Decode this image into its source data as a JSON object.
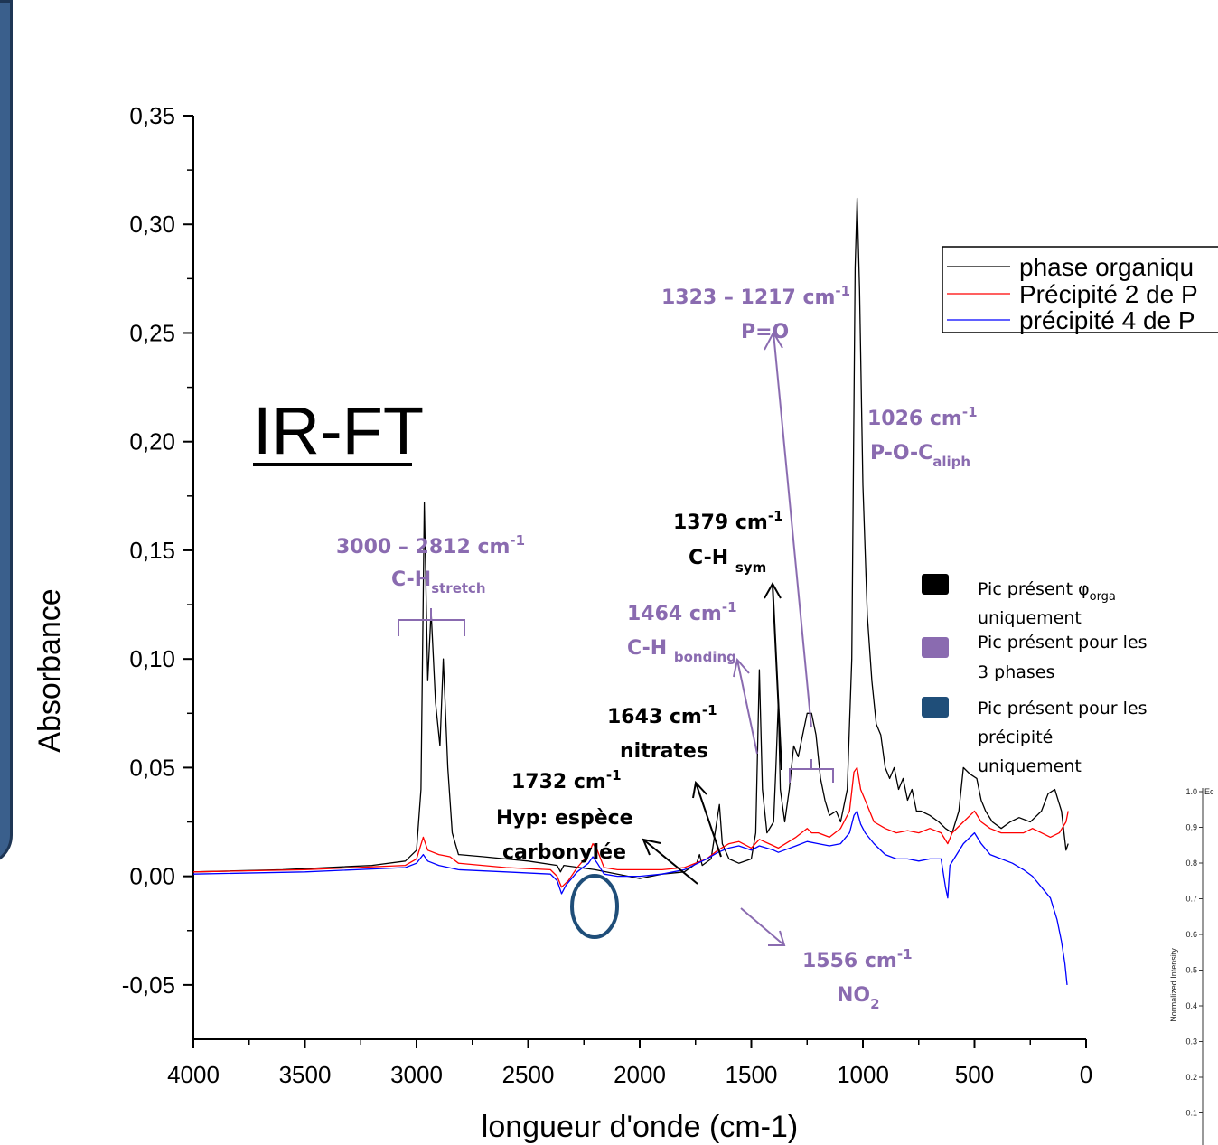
{
  "colors": {
    "black_series": "#000000",
    "red_series": "#ff0000",
    "blue_series": "#0000ff",
    "purple_annotation": "#8a6bb0",
    "dark_blue_key": "#1f4e79"
  },
  "title_overlay": "IR-FT",
  "chart_data": {
    "type": "line",
    "xlabel": "longueur d'onde (cm-1)",
    "ylabel": "Absorbance",
    "xlim": [
      4000,
      0
    ],
    "ylim": [
      -0.075,
      0.35
    ],
    "x_reversed": true,
    "x_ticks": [
      "4000",
      "3500",
      "3000",
      "2500",
      "2000",
      "1500",
      "1000",
      "500",
      "0"
    ],
    "y_ticks": [
      "0,35",
      "0,30",
      "0,25",
      "0,20",
      "0,15",
      "0,10",
      "0,05",
      "0,00",
      "-0,05"
    ],
    "x_tick_values": [
      4000,
      3500,
      3000,
      2500,
      2000,
      1500,
      1000,
      500,
      0
    ],
    "y_tick_values": [
      0.35,
      0.3,
      0.25,
      0.2,
      0.15,
      0.1,
      0.05,
      0.0,
      -0.05
    ],
    "legend_position": "top-right",
    "series": [
      {
        "name": "phase organique",
        "color": "#000000",
        "points": [
          [
            4000,
            0.002
          ],
          [
            3600,
            0.003
          ],
          [
            3200,
            0.005
          ],
          [
            3050,
            0.007
          ],
          [
            3000,
            0.012
          ],
          [
            2980,
            0.04
          ],
          [
            2965,
            0.172
          ],
          [
            2950,
            0.09
          ],
          [
            2935,
            0.122
          ],
          [
            2915,
            0.08
          ],
          [
            2895,
            0.06
          ],
          [
            2880,
            0.1
          ],
          [
            2860,
            0.05
          ],
          [
            2840,
            0.02
          ],
          [
            2812,
            0.01
          ],
          [
            2700,
            0.009
          ],
          [
            2500,
            0.007
          ],
          [
            2370,
            0.005
          ],
          [
            2355,
            0.002
          ],
          [
            2340,
            0.005
          ],
          [
            2200,
            0.003
          ],
          [
            2000,
            -0.001
          ],
          [
            1900,
            0.001
          ],
          [
            1800,
            0.002
          ],
          [
            1745,
            0.006
          ],
          [
            1732,
            0.01
          ],
          [
            1720,
            0.005
          ],
          [
            1680,
            0.008
          ],
          [
            1655,
            0.025
          ],
          [
            1643,
            0.033
          ],
          [
            1630,
            0.015
          ],
          [
            1600,
            0.008
          ],
          [
            1556,
            0.006
          ],
          [
            1500,
            0.008
          ],
          [
            1480,
            0.02
          ],
          [
            1464,
            0.095
          ],
          [
            1450,
            0.04
          ],
          [
            1430,
            0.02
          ],
          [
            1400,
            0.025
          ],
          [
            1390,
            0.05
          ],
          [
            1379,
            0.08
          ],
          [
            1370,
            0.04
          ],
          [
            1350,
            0.025
          ],
          [
            1330,
            0.04
          ],
          [
            1310,
            0.06
          ],
          [
            1290,
            0.055
          ],
          [
            1270,
            0.065
          ],
          [
            1250,
            0.075
          ],
          [
            1230,
            0.075
          ],
          [
            1210,
            0.065
          ],
          [
            1190,
            0.045
          ],
          [
            1170,
            0.035
          ],
          [
            1150,
            0.028
          ],
          [
            1120,
            0.03
          ],
          [
            1100,
            0.025
          ],
          [
            1070,
            0.04
          ],
          [
            1050,
            0.1
          ],
          [
            1035,
            0.28
          ],
          [
            1026,
            0.312
          ],
          [
            1015,
            0.27
          ],
          [
            1000,
            0.18
          ],
          [
            980,
            0.12
          ],
          [
            960,
            0.09
          ],
          [
            940,
            0.07
          ],
          [
            920,
            0.065
          ],
          [
            900,
            0.05
          ],
          [
            880,
            0.045
          ],
          [
            860,
            0.05
          ],
          [
            840,
            0.04
          ],
          [
            820,
            0.045
          ],
          [
            800,
            0.035
          ],
          [
            780,
            0.04
          ],
          [
            760,
            0.03
          ],
          [
            740,
            0.03
          ],
          [
            700,
            0.028
          ],
          [
            660,
            0.025
          ],
          [
            630,
            0.022
          ],
          [
            600,
            0.02
          ],
          [
            570,
            0.03
          ],
          [
            550,
            0.05
          ],
          [
            520,
            0.047
          ],
          [
            490,
            0.045
          ],
          [
            470,
            0.035
          ],
          [
            450,
            0.03
          ],
          [
            420,
            0.025
          ],
          [
            380,
            0.022
          ],
          [
            340,
            0.025
          ],
          [
            300,
            0.027
          ],
          [
            250,
            0.025
          ],
          [
            200,
            0.03
          ],
          [
            170,
            0.038
          ],
          [
            140,
            0.04
          ],
          [
            110,
            0.03
          ],
          [
            90,
            0.012
          ],
          [
            80,
            0.015
          ]
        ]
      },
      {
        "name": "Précipité 2 de P",
        "color": "#ff0000",
        "points": [
          [
            4000,
            0.002
          ],
          [
            3500,
            0.003
          ],
          [
            3050,
            0.005
          ],
          [
            3000,
            0.008
          ],
          [
            2970,
            0.018
          ],
          [
            2950,
            0.012
          ],
          [
            2900,
            0.01
          ],
          [
            2850,
            0.009
          ],
          [
            2812,
            0.006
          ],
          [
            2600,
            0.004
          ],
          [
            2400,
            0.003
          ],
          [
            2370,
            0.0
          ],
          [
            2350,
            -0.005
          ],
          [
            2320,
            -0.002
          ],
          [
            2280,
            0.004
          ],
          [
            2230,
            0.01
          ],
          [
            2210,
            0.015
          ],
          [
            2190,
            0.012
          ],
          [
            2160,
            0.004
          ],
          [
            2100,
            0.003
          ],
          [
            2000,
            0.003
          ],
          [
            1900,
            0.003
          ],
          [
            1800,
            0.004
          ],
          [
            1700,
            0.008
          ],
          [
            1650,
            0.012
          ],
          [
            1600,
            0.015
          ],
          [
            1556,
            0.016
          ],
          [
            1500,
            0.013
          ],
          [
            1464,
            0.017
          ],
          [
            1400,
            0.014
          ],
          [
            1379,
            0.013
          ],
          [
            1300,
            0.018
          ],
          [
            1250,
            0.022
          ],
          [
            1230,
            0.02
          ],
          [
            1200,
            0.02
          ],
          [
            1150,
            0.018
          ],
          [
            1100,
            0.022
          ],
          [
            1060,
            0.03
          ],
          [
            1040,
            0.048
          ],
          [
            1026,
            0.05
          ],
          [
            1010,
            0.04
          ],
          [
            990,
            0.035
          ],
          [
            950,
            0.025
          ],
          [
            900,
            0.022
          ],
          [
            850,
            0.02
          ],
          [
            800,
            0.021
          ],
          [
            750,
            0.02
          ],
          [
            700,
            0.022
          ],
          [
            650,
            0.02
          ],
          [
            620,
            0.015
          ],
          [
            600,
            0.02
          ],
          [
            550,
            0.025
          ],
          [
            520,
            0.028
          ],
          [
            500,
            0.03
          ],
          [
            470,
            0.025
          ],
          [
            430,
            0.022
          ],
          [
            380,
            0.02
          ],
          [
            330,
            0.02
          ],
          [
            280,
            0.02
          ],
          [
            240,
            0.022
          ],
          [
            200,
            0.02
          ],
          [
            160,
            0.018
          ],
          [
            120,
            0.02
          ],
          [
            90,
            0.025
          ],
          [
            80,
            0.03
          ]
        ]
      },
      {
        "name": "précipité 4 de P",
        "color": "#0000ff",
        "points": [
          [
            4000,
            0.001
          ],
          [
            3500,
            0.002
          ],
          [
            3050,
            0.004
          ],
          [
            3000,
            0.006
          ],
          [
            2970,
            0.01
          ],
          [
            2950,
            0.007
          ],
          [
            2900,
            0.005
          ],
          [
            2812,
            0.003
          ],
          [
            2600,
            0.002
          ],
          [
            2400,
            0.001
          ],
          [
            2370,
            -0.002
          ],
          [
            2350,
            -0.008
          ],
          [
            2330,
            -0.004
          ],
          [
            2280,
            0.002
          ],
          [
            2230,
            0.006
          ],
          [
            2210,
            0.009
          ],
          [
            2190,
            0.006
          ],
          [
            2160,
            0.001
          ],
          [
            2100,
            0.0
          ],
          [
            2000,
            0.0
          ],
          [
            1900,
            0.001
          ],
          [
            1800,
            0.003
          ],
          [
            1700,
            0.008
          ],
          [
            1650,
            0.011
          ],
          [
            1600,
            0.013
          ],
          [
            1556,
            0.014
          ],
          [
            1500,
            0.012
          ],
          [
            1464,
            0.014
          ],
          [
            1400,
            0.012
          ],
          [
            1379,
            0.011
          ],
          [
            1300,
            0.014
          ],
          [
            1250,
            0.016
          ],
          [
            1200,
            0.015
          ],
          [
            1150,
            0.014
          ],
          [
            1100,
            0.015
          ],
          [
            1060,
            0.02
          ],
          [
            1040,
            0.028
          ],
          [
            1026,
            0.03
          ],
          [
            1010,
            0.024
          ],
          [
            990,
            0.02
          ],
          [
            950,
            0.015
          ],
          [
            900,
            0.01
          ],
          [
            850,
            0.008
          ],
          [
            800,
            0.008
          ],
          [
            750,
            0.007
          ],
          [
            700,
            0.008
          ],
          [
            650,
            0.008
          ],
          [
            630,
            -0.005
          ],
          [
            620,
            -0.01
          ],
          [
            610,
            0.005
          ],
          [
            550,
            0.015
          ],
          [
            520,
            0.018
          ],
          [
            500,
            0.02
          ],
          [
            470,
            0.015
          ],
          [
            430,
            0.01
          ],
          [
            380,
            0.008
          ],
          [
            330,
            0.006
          ],
          [
            280,
            0.003
          ],
          [
            240,
            0.0
          ],
          [
            200,
            -0.005
          ],
          [
            160,
            -0.01
          ],
          [
            130,
            -0.02
          ],
          [
            110,
            -0.03
          ],
          [
            95,
            -0.04
          ],
          [
            85,
            -0.05
          ]
        ]
      }
    ],
    "annotations": [
      {
        "line1": "3000 – 2812 cm",
        "sup": "-1",
        "line2": "C-H",
        "sub": "stretch",
        "color": "purple"
      },
      {
        "line1": "1323 – 1217 cm",
        "sup": "-1",
        "line2": "P=O",
        "sub": "",
        "color": "purple"
      },
      {
        "line1": "1026 cm",
        "sup": "-1",
        "line2": "P-O-C",
        "sub": "aliph",
        "color": "purple"
      },
      {
        "line1": "1379 cm",
        "sup": "-1",
        "line2": "C-H ",
        "sub": "sym",
        "color": "black"
      },
      {
        "line1": "1464 cm",
        "sup": "-1",
        "line2": "C-H ",
        "sub": "bonding",
        "color": "purple"
      },
      {
        "line1": "1643 cm",
        "sup": "-1",
        "line2": "nitrates",
        "sub": "",
        "color": "black"
      },
      {
        "line1": "1732 cm",
        "sup": "-1",
        "line2": "Hyp: espèce",
        "line3": "carbonylée",
        "sub": "",
        "color": "black"
      },
      {
        "line1": "1556 cm",
        "sup": "-1",
        "line2": "NO",
        "sub": "2",
        "color": "purple"
      }
    ]
  },
  "legend": {
    "items": [
      "phase organiqu",
      "Précipité 2 de P",
      "précipité 4 de P"
    ]
  },
  "key": {
    "black": {
      "line1": "Pic présent φ",
      "sub": "orga",
      "line2": "uniquement"
    },
    "purple": {
      "line1": "Pic présent pour les",
      "line2": "3 phases"
    },
    "blue": {
      "line1": "Pic présent pour les",
      "line2": "précipité",
      "line3": "uniquement"
    }
  },
  "inset": {
    "ylabel": "Normalized Intensity",
    "corner_label": "Ec",
    "ticks": [
      "1.0",
      "0.9",
      "0.8",
      "0.7",
      "0.6",
      "0.5",
      "0.4",
      "0.3",
      "0.2",
      "0.1"
    ]
  }
}
